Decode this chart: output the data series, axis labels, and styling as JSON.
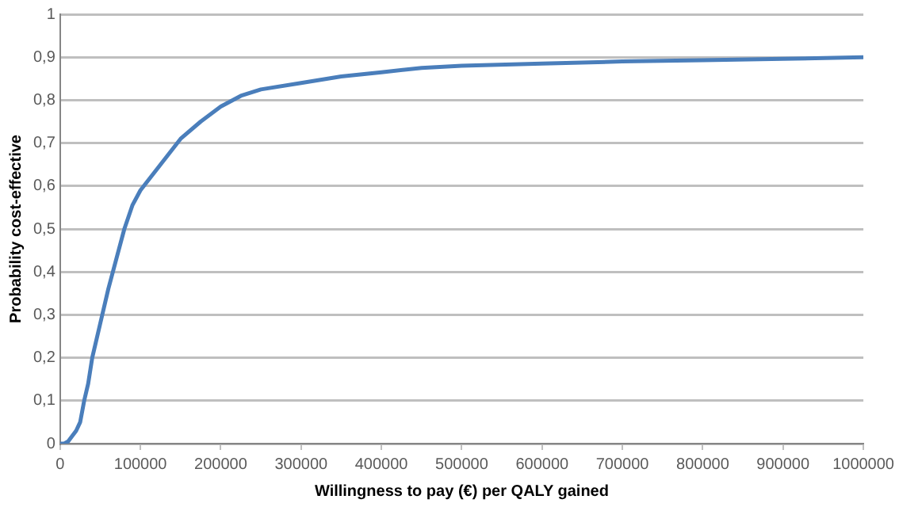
{
  "chart_data": {
    "type": "line",
    "xlabel": "Willingness to pay (€) per QALY gained",
    "ylabel": "Probability cost-effective",
    "x": [
      0,
      5000,
      10000,
      20000,
      25000,
      30000,
      35000,
      40000,
      50000,
      60000,
      70000,
      80000,
      90000,
      100000,
      125000,
      150000,
      175000,
      200000,
      225000,
      250000,
      300000,
      350000,
      400000,
      450000,
      500000,
      600000,
      700000,
      800000,
      900000,
      1000000
    ],
    "series": [
      {
        "color": "#4a7ebb",
        "values": [
          0,
          0,
          0.005,
          0.03,
          0.05,
          0.1,
          0.14,
          0.2,
          0.28,
          0.36,
          0.43,
          0.5,
          0.555,
          0.59,
          0.65,
          0.71,
          0.75,
          0.785,
          0.81,
          0.825,
          0.84,
          0.855,
          0.865,
          0.875,
          0.88,
          0.885,
          0.89,
          0.893,
          0.896,
          0.9
        ]
      }
    ],
    "xlim": [
      0,
      1000000
    ],
    "xticks": [
      0,
      100000,
      200000,
      300000,
      400000,
      500000,
      600000,
      700000,
      800000,
      900000,
      1000000
    ],
    "ylim": [
      0,
      1
    ],
    "yticks": [
      0,
      {
        "value": 0.1,
        "label": "0,1"
      },
      {
        "value": 0.2,
        "label": "0,2"
      },
      {
        "value": 0.3,
        "label": "0,3"
      },
      {
        "value": 0.4,
        "label": "0,4"
      },
      {
        "value": 0.5,
        "label": "0,5"
      },
      {
        "value": 0.6,
        "label": "0,6"
      },
      {
        "value": 0.7,
        "label": "0,7"
      },
      {
        "value": 0.8,
        "label": "0,8"
      },
      {
        "value": 0.9,
        "label": "0,9"
      },
      1
    ],
    "grid": "y",
    "legend": false,
    "marker": "none",
    "line_style": "solid"
  }
}
